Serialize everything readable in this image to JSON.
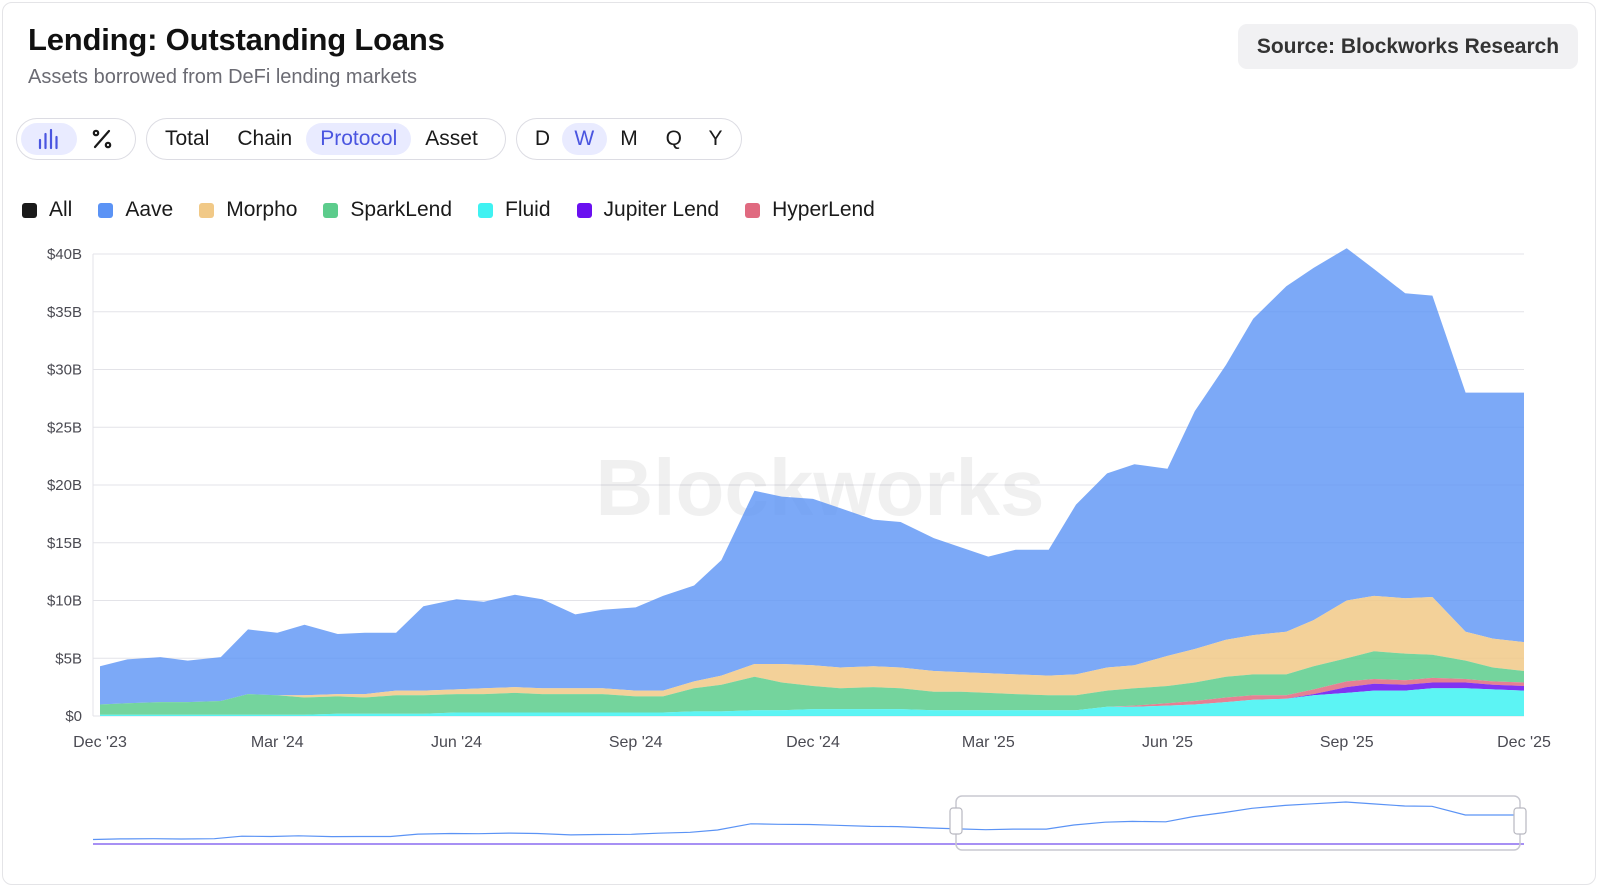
{
  "header": {
    "title": "Lending: Outstanding Loans",
    "subtitle": "Assets borrowed from DeFi lending markets",
    "source": "Source: Blockworks Research"
  },
  "controls": {
    "view_toggle": [
      {
        "icon": "bar-chart-icon",
        "active": true
      },
      {
        "icon": "percent-icon",
        "active": false
      }
    ],
    "breakdown": [
      {
        "label": "Total",
        "active": false
      },
      {
        "label": "Chain",
        "active": false
      },
      {
        "label": "Protocol",
        "active": true
      },
      {
        "label": "Asset",
        "active": false
      }
    ],
    "interval": [
      {
        "label": "D",
        "active": false
      },
      {
        "label": "W",
        "active": true
      },
      {
        "label": "M",
        "active": false
      },
      {
        "label": "Q",
        "active": false
      },
      {
        "label": "Y",
        "active": false
      }
    ]
  },
  "legend": [
    {
      "label": "All",
      "color": "#1a1a1a"
    },
    {
      "label": "Aave",
      "color": "#5b93f5"
    },
    {
      "label": "Morpho",
      "color": "#f1c987"
    },
    {
      "label": "SparkLend",
      "color": "#5ccc8c"
    },
    {
      "label": "Fluid",
      "color": "#3ff2f2"
    },
    {
      "label": "Jupiter Lend",
      "color": "#6a10f0"
    },
    {
      "label": "HyperLend",
      "color": "#e06a80"
    }
  ],
  "watermark": "Blockworks",
  "chart_data": {
    "type": "area",
    "stacked": true,
    "title": "Lending: Outstanding Loans",
    "y_unit": "$B",
    "ylim": [
      0,
      40
    ],
    "y_ticks": [
      "$0",
      "$5B",
      "$10B",
      "$15B",
      "$20B",
      "$25B",
      "$30B",
      "$35B",
      "$40B"
    ],
    "x_ticks": [
      "Dec '23",
      "Mar '24",
      "Jun '24",
      "Sep '24",
      "Dec '24",
      "Mar '25",
      "Jun '25",
      "Sep '25",
      "Dec '25"
    ],
    "x_tick_dates": [
      "2023-12-01",
      "2024-03-01",
      "2024-06-01",
      "2024-09-01",
      "2024-12-01",
      "2025-03-01",
      "2025-06-01",
      "2025-09-01",
      "2025-12-01"
    ],
    "grid": true,
    "legend_position": "top-left",
    "x": [
      "2023-12-01",
      "2023-12-15",
      "2024-01-01",
      "2024-01-15",
      "2024-02-01",
      "2024-02-15",
      "2024-03-01",
      "2024-03-15",
      "2024-04-01",
      "2024-04-15",
      "2024-05-01",
      "2024-05-15",
      "2024-06-01",
      "2024-06-15",
      "2024-07-01",
      "2024-07-15",
      "2024-08-01",
      "2024-08-15",
      "2024-09-01",
      "2024-09-15",
      "2024-10-01",
      "2024-10-15",
      "2024-11-01",
      "2024-11-15",
      "2024-12-01",
      "2024-12-15",
      "2025-01-01",
      "2025-01-15",
      "2025-02-01",
      "2025-02-15",
      "2025-03-01",
      "2025-03-15",
      "2025-04-01",
      "2025-04-15",
      "2025-05-01",
      "2025-05-15",
      "2025-06-01",
      "2025-06-15",
      "2025-07-01",
      "2025-07-15",
      "2025-08-01",
      "2025-08-15",
      "2025-09-01",
      "2025-09-15",
      "2025-10-01",
      "2025-10-15",
      "2025-11-01",
      "2025-11-15",
      "2025-12-01"
    ],
    "series": [
      {
        "name": "Fluid",
        "values": [
          0.1,
          0.1,
          0.1,
          0.1,
          0.1,
          0.1,
          0.1,
          0.1,
          0.2,
          0.2,
          0.2,
          0.2,
          0.3,
          0.3,
          0.3,
          0.3,
          0.3,
          0.3,
          0.3,
          0.3,
          0.4,
          0.4,
          0.5,
          0.5,
          0.6,
          0.6,
          0.6,
          0.6,
          0.5,
          0.5,
          0.5,
          0.5,
          0.5,
          0.5,
          0.8,
          0.8,
          0.9,
          1.0,
          1.2,
          1.4,
          1.5,
          1.8,
          2.0,
          2.2,
          2.2,
          2.4,
          2.4,
          2.3,
          2.2
        ]
      },
      {
        "name": "Jupiter Lend",
        "values": [
          0,
          0,
          0,
          0,
          0,
          0,
          0,
          0,
          0,
          0,
          0,
          0,
          0,
          0,
          0,
          0,
          0,
          0,
          0,
          0,
          0,
          0,
          0,
          0,
          0,
          0,
          0,
          0,
          0,
          0,
          0,
          0,
          0,
          0,
          0,
          0,
          0,
          0,
          0,
          0,
          0,
          0.1,
          0.5,
          0.6,
          0.5,
          0.5,
          0.5,
          0.4,
          0.4
        ]
      },
      {
        "name": "HyperLend",
        "values": [
          0,
          0,
          0,
          0,
          0,
          0,
          0,
          0,
          0,
          0,
          0,
          0,
          0,
          0,
          0,
          0,
          0,
          0,
          0,
          0,
          0,
          0,
          0,
          0,
          0,
          0,
          0,
          0,
          0,
          0,
          0,
          0,
          0,
          0,
          0,
          0.1,
          0.2,
          0.3,
          0.4,
          0.4,
          0.3,
          0.4,
          0.5,
          0.4,
          0.4,
          0.4,
          0.3,
          0.3,
          0.3
        ]
      },
      {
        "name": "SparkLend",
        "values": [
          0.9,
          1.0,
          1.1,
          1.1,
          1.2,
          1.8,
          1.7,
          1.5,
          1.5,
          1.4,
          1.6,
          1.6,
          1.6,
          1.6,
          1.7,
          1.6,
          1.6,
          1.6,
          1.4,
          1.4,
          2.0,
          2.3,
          2.9,
          2.4,
          2.0,
          1.8,
          1.9,
          1.8,
          1.6,
          1.6,
          1.5,
          1.4,
          1.3,
          1.3,
          1.4,
          1.5,
          1.5,
          1.6,
          1.8,
          1.8,
          1.8,
          2.0,
          2.0,
          2.4,
          2.3,
          2.0,
          1.6,
          1.2,
          1.0
        ]
      },
      {
        "name": "Morpho",
        "values": [
          0,
          0,
          0,
          0,
          0,
          0,
          0,
          0.2,
          0.2,
          0.3,
          0.4,
          0.4,
          0.4,
          0.5,
          0.5,
          0.5,
          0.5,
          0.5,
          0.5,
          0.5,
          0.6,
          0.8,
          1.1,
          1.6,
          1.8,
          1.8,
          1.8,
          1.8,
          1.8,
          1.7,
          1.7,
          1.7,
          1.7,
          1.8,
          2.0,
          2.0,
          2.6,
          2.9,
          3.2,
          3.4,
          3.7,
          4.0,
          5.0,
          4.8,
          4.8,
          5.0,
          2.5,
          2.5,
          2.5
        ]
      },
      {
        "name": "Aave",
        "values": [
          3.3,
          3.8,
          3.9,
          3.6,
          3.8,
          5.6,
          5.4,
          6.1,
          5.2,
          5.3,
          5.0,
          7.3,
          7.8,
          7.5,
          8.0,
          7.7,
          6.4,
          6.8,
          7.2,
          8.2,
          8.3,
          10.0,
          15.0,
          14.5,
          14.4,
          13.8,
          12.7,
          12.6,
          11.5,
          10.8,
          10.1,
          10.8,
          10.9,
          14.7,
          16.8,
          17.4,
          16.2,
          20.6,
          23.8,
          27.4,
          29.9,
          30.5,
          30.5,
          28.3,
          26.4,
          26.1,
          20.7,
          21.3,
          21.6
        ]
      }
    ]
  }
}
